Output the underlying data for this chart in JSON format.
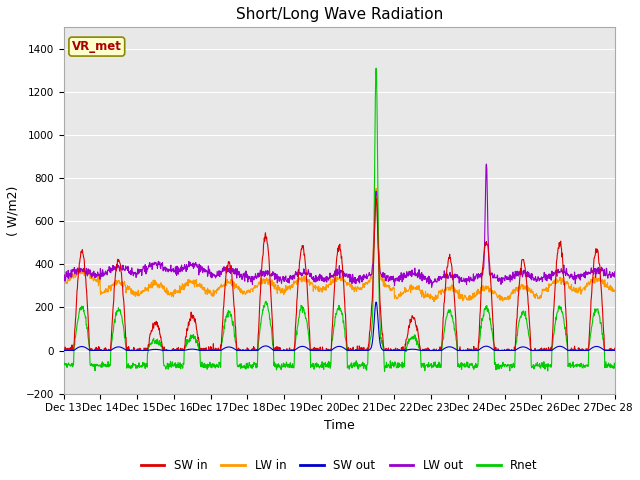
{
  "title": "Short/Long Wave Radiation",
  "xlabel": "Time",
  "ylabel": "( W/m2)",
  "ylim": [
    -200,
    1500
  ],
  "yticks": [
    -200,
    0,
    200,
    400,
    600,
    800,
    1000,
    1200,
    1400
  ],
  "xtick_labels": [
    "Dec 13",
    "Dec 14",
    "Dec 15",
    "Dec 16",
    "Dec 17",
    "Dec 18",
    "Dec 19",
    "Dec 20",
    "Dec 21",
    "Dec 22",
    "Dec 23",
    "Dec 24",
    "Dec 25",
    "Dec 26",
    "Dec 27",
    "Dec 28"
  ],
  "station_label": "VR_met",
  "colors": {
    "SW_in": "#dd0000",
    "LW_in": "#ff9900",
    "SW_out": "#0000cc",
    "LW_out": "#9900cc",
    "Rnet": "#00cc00"
  },
  "legend_labels": [
    "SW in",
    "LW in",
    "SW out",
    "LW out",
    "Rnet"
  ],
  "background_color": "#e8e8e8",
  "title_fontsize": 11,
  "axis_fontsize": 9,
  "tick_fontsize": 7.5
}
